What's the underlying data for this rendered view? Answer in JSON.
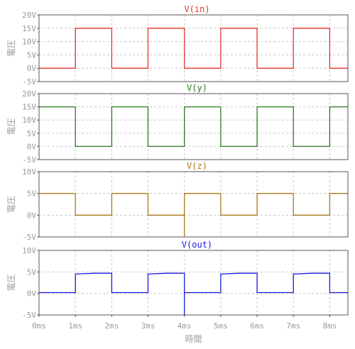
{
  "chart_data": [
    {
      "type": "line",
      "title": "V(in)",
      "ylabel": "電圧",
      "xlim": [
        0,
        8.5
      ],
      "ylim": [
        -5,
        20
      ],
      "y_ticks": [
        "-5V",
        "0V",
        "5V",
        "10V",
        "15V",
        "20V"
      ],
      "grid": true,
      "series": [
        {
          "name": "V(in)",
          "color": "#e8312b",
          "x": [
            0,
            1,
            1,
            2,
            2,
            3,
            3,
            4,
            4,
            5,
            5,
            6,
            6,
            7,
            7,
            8,
            8,
            8.5
          ],
          "y": [
            0,
            0,
            15,
            15,
            0,
            0,
            15,
            15,
            0,
            0,
            15,
            15,
            0,
            0,
            15,
            15,
            0,
            0
          ]
        }
      ]
    },
    {
      "type": "line",
      "title": "V(y)",
      "ylabel": "電圧",
      "xlim": [
        0,
        8.5
      ],
      "ylim": [
        -5,
        20
      ],
      "y_ticks": [
        "-5V",
        "0V",
        "5V",
        "10V",
        "15V",
        "20V"
      ],
      "grid": true,
      "series": [
        {
          "name": "V(y)",
          "color": "#2a7a1e",
          "x": [
            0,
            1,
            1,
            2,
            2,
            3,
            3,
            4,
            4,
            5,
            5,
            6,
            6,
            7,
            7,
            8,
            8,
            8.5
          ],
          "y": [
            15,
            15,
            0,
            0,
            15,
            15,
            0,
            0,
            15,
            15,
            0,
            0,
            15,
            15,
            0,
            0,
            15,
            15
          ]
        }
      ]
    },
    {
      "type": "line",
      "title": "V(z)",
      "ylabel": "電圧",
      "xlim": [
        0,
        8.5
      ],
      "ylim": [
        -5,
        10
      ],
      "y_ticks": [
        "-5V",
        "0V",
        "5V",
        "10V"
      ],
      "grid": true,
      "series": [
        {
          "name": "V(z)",
          "color": "#a8791a",
          "x": [
            0,
            1,
            1,
            2,
            2,
            3,
            3,
            4,
            4,
            4,
            4,
            5,
            5,
            6,
            6,
            7,
            7,
            8,
            8,
            8.5
          ],
          "y": [
            5,
            5,
            0,
            0,
            5,
            5,
            0,
            0,
            -5,
            0,
            5,
            5,
            0,
            0,
            5,
            5,
            0,
            0,
            5,
            5
          ]
        }
      ]
    },
    {
      "type": "line",
      "title": "V(out)",
      "ylabel": "電圧",
      "xlabel": "時間",
      "xlim": [
        0,
        8.5
      ],
      "ylim": [
        -5,
        10
      ],
      "y_ticks": [
        "-5V",
        "0V",
        "5V",
        "10V"
      ],
      "x_ticks": [
        "0ms",
        "1ms",
        "2ms",
        "3ms",
        "4ms",
        "5ms",
        "6ms",
        "7ms",
        "8ms"
      ],
      "grid": true,
      "series": [
        {
          "name": "V(out)",
          "color": "#1a1adf",
          "x": [
            0,
            1,
            1,
            1.5,
            2,
            2,
            3,
            3,
            3.5,
            4,
            4,
            4,
            4,
            5,
            5,
            5.5,
            6,
            6,
            7,
            7,
            7.5,
            8,
            8,
            8.5
          ],
          "y": [
            0.2,
            0.2,
            4.5,
            4.7,
            4.7,
            0.2,
            0.2,
            4.5,
            4.7,
            4.7,
            -5,
            0,
            0.2,
            0.2,
            4.5,
            4.7,
            4.7,
            0.2,
            0.2,
            4.5,
            4.7,
            4.7,
            0.2,
            0.2
          ]
        }
      ]
    }
  ]
}
